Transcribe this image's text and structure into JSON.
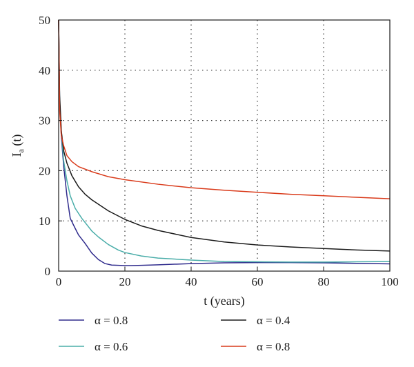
{
  "chart_data": {
    "type": "line",
    "xlabel": "t (years)",
    "ylabel": {
      "main": "I",
      "sub": "a",
      "rest": " (t)"
    },
    "xlim": [
      0,
      100
    ],
    "ylim": [
      0,
      50
    ],
    "x_ticks": [
      0,
      20,
      40,
      60,
      80,
      100
    ],
    "y_ticks": [
      0,
      10,
      20,
      30,
      40,
      50
    ],
    "grid": true,
    "legend_position": "below plot, two columns",
    "series": [
      {
        "name": "α = 0.8",
        "color": "#2e2a8c",
        "x": [
          0,
          0.3,
          0.8,
          1.5,
          2.5,
          3.5,
          5,
          6,
          8,
          10,
          12,
          14,
          16,
          18,
          20,
          22,
          25,
          30,
          40,
          50,
          60,
          70,
          80,
          90,
          100
        ],
        "y": [
          50,
          34,
          27,
          21,
          15,
          10.5,
          8.5,
          7.2,
          5.5,
          3.6,
          2.3,
          1.5,
          1.2,
          1.15,
          1.1,
          1.1,
          1.15,
          1.25,
          1.5,
          1.65,
          1.7,
          1.7,
          1.65,
          1.55,
          1.45
        ]
      },
      {
        "name": "α = 0.6",
        "color": "#4aada9",
        "x": [
          0,
          0.3,
          0.8,
          1.5,
          2.5,
          3.5,
          5,
          7,
          10,
          12,
          15,
          18,
          20,
          25,
          30,
          40,
          50,
          60,
          70,
          80,
          90,
          100
        ],
        "y": [
          50,
          34,
          28,
          22,
          18,
          15,
          12.5,
          10.5,
          8,
          6.8,
          5.3,
          4.2,
          3.7,
          3,
          2.6,
          2.2,
          1.9,
          1.85,
          1.8,
          1.8,
          1.85,
          1.9
        ]
      },
      {
        "name": "α = 0.4",
        "color": "#1a1a1a",
        "x": [
          0,
          0.3,
          0.8,
          1.5,
          2.5,
          4,
          6,
          8,
          10,
          15,
          20,
          25,
          30,
          40,
          50,
          60,
          70,
          80,
          90,
          100
        ],
        "y": [
          50,
          35,
          28,
          24,
          21.5,
          19,
          16.8,
          15.3,
          14.2,
          12,
          10.3,
          9,
          8.1,
          6.7,
          5.8,
          5.2,
          4.8,
          4.5,
          4.2,
          4.0
        ]
      },
      {
        "name": "α = 0.8",
        "color": "#d93a1a",
        "x": [
          0,
          0.3,
          0.8,
          1.5,
          2.5,
          4,
          6,
          10,
          15,
          20,
          30,
          40,
          50,
          60,
          70,
          80,
          90,
          100
        ],
        "y": [
          50,
          32,
          27,
          25,
          23,
          21.8,
          20.8,
          19.8,
          18.8,
          18.2,
          17.3,
          16.6,
          16.1,
          15.7,
          15.3,
          15.0,
          14.7,
          14.4
        ]
      }
    ]
  }
}
